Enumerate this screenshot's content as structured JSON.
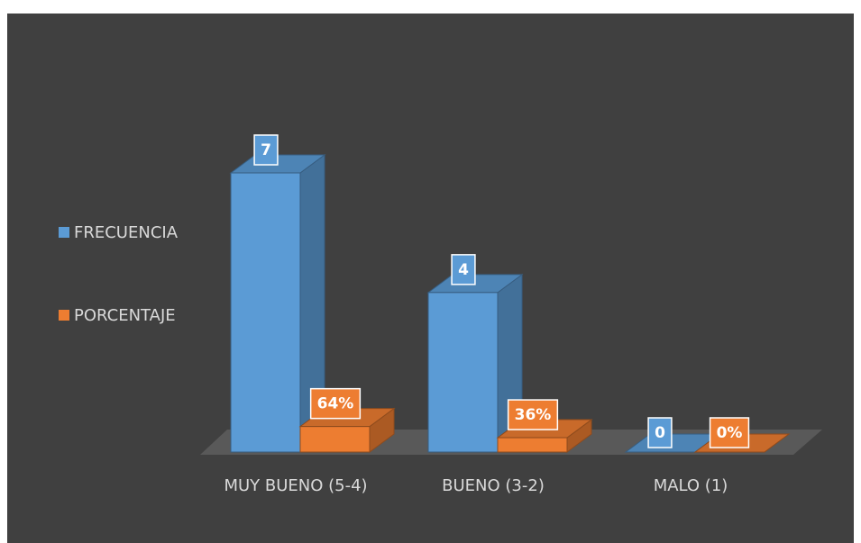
{
  "chart_data": {
    "type": "bar3d",
    "categories": [
      "MUY BUENO (5-4)",
      "BUENO (3-2)",
      "MALO (1)"
    ],
    "series": [
      {
        "name": "FRECUENCIA",
        "color": "#5b9bd5",
        "values": [
          7,
          4,
          0
        ]
      },
      {
        "name": "PORCENTAJE",
        "color": "#ed7d31",
        "values": [
          0.64,
          0.36,
          0
        ],
        "value_labels": [
          "64%",
          "36%",
          "0%"
        ]
      }
    ],
    "legend": "left"
  }
}
